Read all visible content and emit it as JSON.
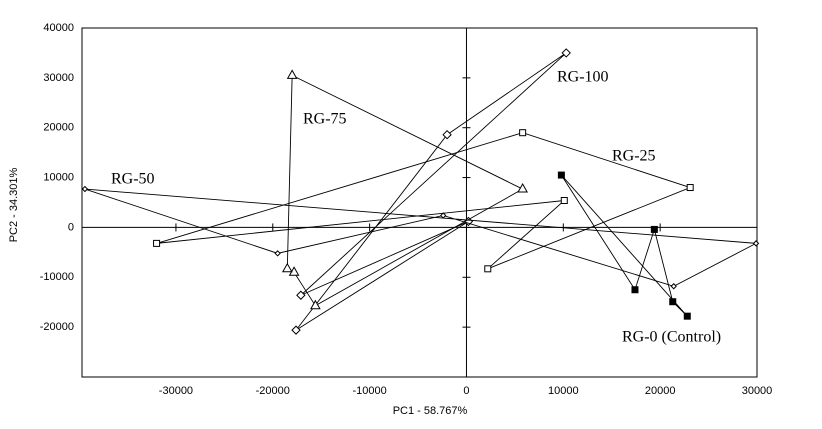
{
  "chart_data": {
    "type": "scatter",
    "x_label": "PC1 - 58.767%",
    "y_label": "PC2 - 34.301%",
    "xlim": [
      -39700,
      30000
    ],
    "ylim": [
      -30000,
      40000
    ],
    "xticks": [
      -30000,
      -20000,
      -10000,
      0,
      10000,
      20000,
      30000
    ],
    "yticks": [
      -20000,
      -10000,
      0,
      10000,
      20000,
      30000,
      40000
    ],
    "closed": true,
    "color": "#000000",
    "series": [
      {
        "name": "RG-100",
        "marker": "diamond",
        "x": [
          10300,
          -2000,
          -17600,
          200,
          -17100
        ],
        "values": [
          35000,
          18600,
          -20600,
          1200,
          -13600
        ]
      },
      {
        "name": "RG-75",
        "marker": "triangle",
        "x": [
          -18000,
          5800,
          -15600,
          -17800,
          -18500
        ],
        "values": [
          30500,
          7700,
          -15700,
          -9000,
          -8300
        ]
      },
      {
        "name": "RG-25",
        "marker": "open-square",
        "x": [
          -32000,
          5800,
          23100,
          2200,
          10100
        ],
        "values": [
          -3200,
          19000,
          8000,
          -8300,
          5400
        ]
      },
      {
        "name": "RG-50",
        "marker": "small-diamond",
        "x": [
          -39400,
          29900,
          21400,
          -2400,
          -19500
        ],
        "values": [
          7700,
          -3200,
          -11800,
          2400,
          -5200
        ]
      },
      {
        "name": "RG-0 (Control)",
        "marker": "filled-square",
        "x": [
          9800,
          17400,
          19400,
          21300,
          22800
        ],
        "values": [
          10500,
          -12500,
          -400,
          -14900,
          -17800
        ]
      }
    ]
  }
}
